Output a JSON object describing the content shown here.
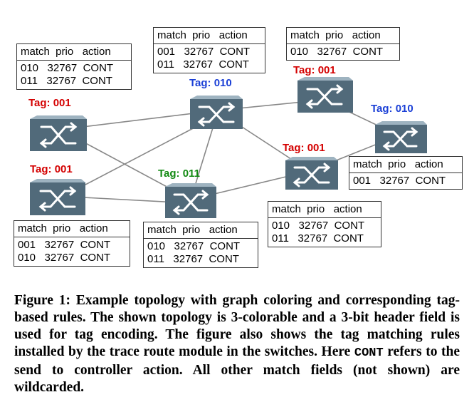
{
  "colors": {
    "red": "#d40000",
    "blue": "#1a3fd6",
    "green": "#128a12",
    "switch_body": "#516a7a",
    "switch_top": "#9eb3c0"
  },
  "table_header": "match  prio   action",
  "switches": [
    {
      "id": "s1",
      "tag": "Tag: 001",
      "tag_color": "red"
    },
    {
      "id": "s2",
      "tag": "Tag: 010",
      "tag_color": "blue"
    },
    {
      "id": "s3",
      "tag": "Tag: 001",
      "tag_color": "red"
    },
    {
      "id": "s4",
      "tag": "Tag: 010",
      "tag_color": "blue"
    },
    {
      "id": "s5",
      "tag": "Tag: 001",
      "tag_color": "red"
    },
    {
      "id": "s6",
      "tag": "Tag: 011",
      "tag_color": "green"
    },
    {
      "id": "s7",
      "tag": "Tag: 001",
      "tag_color": "red"
    }
  ],
  "tables": [
    {
      "id": "t1",
      "rows": [
        "010   32767  CONT",
        "011   32767  CONT"
      ]
    },
    {
      "id": "t2",
      "rows": [
        "001   32767  CONT",
        "011   32767  CONT"
      ]
    },
    {
      "id": "t3",
      "rows": [
        "010   32767  CONT"
      ]
    },
    {
      "id": "t4",
      "rows": [
        "001   32767  CONT"
      ]
    },
    {
      "id": "t5",
      "rows": [
        "010   32767  CONT",
        "011   32767  CONT"
      ]
    },
    {
      "id": "t6",
      "rows": [
        "001   32767  CONT",
        "010   32767  CONT"
      ]
    },
    {
      "id": "t7",
      "rows": [
        "010   32767  CONT",
        "011   32767  CONT"
      ]
    }
  ],
  "caption": {
    "label": "Figure 1:",
    "text_before_code": "Example topology with graph coloring and corresponding tag-based rules. The shown topology is 3-colorable and a 3-bit header field is used for tag encoding. The figure also shows the tag matching rules installed by the trace route module in the switches. Here",
    "code": "CONT",
    "text_after_code": "refers to the send to controller action. All other match fields (not shown) are wildcarded."
  }
}
